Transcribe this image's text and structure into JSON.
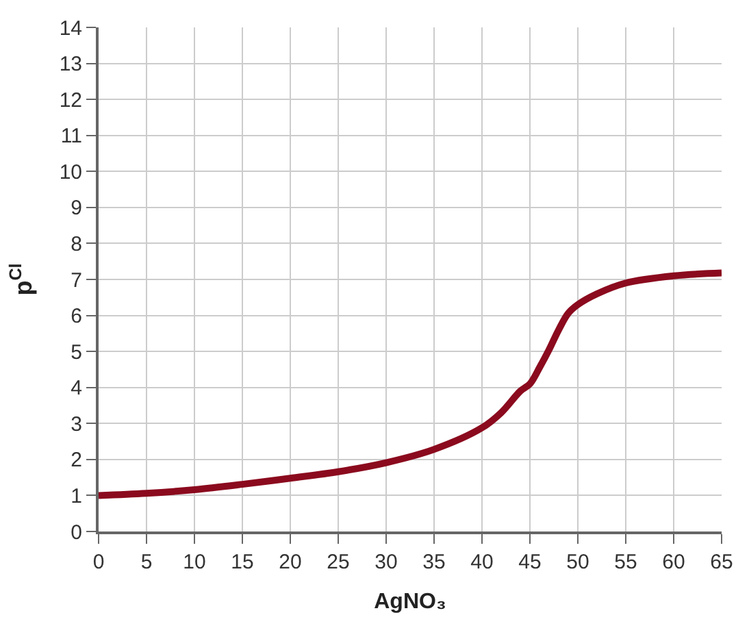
{
  "chart_data": {
    "type": "line",
    "xlabel": "AgNO₃",
    "ylabel": "p$^{Cl}$",
    "x": [
      0,
      5,
      10,
      15,
      20,
      25,
      30,
      35,
      40,
      42,
      44,
      45,
      46,
      47,
      48,
      49,
      50,
      52,
      55,
      60,
      65
    ],
    "series": [
      {
        "color": "#8b0a1e",
        "values": [
          1.0,
          1.06,
          1.16,
          1.31,
          1.48,
          1.66,
          1.91,
          2.28,
          2.88,
          3.3,
          3.9,
          4.1,
          4.55,
          5.05,
          5.6,
          6.06,
          6.3,
          6.6,
          6.9,
          7.1,
          7.18
        ]
      }
    ],
    "xlim": [
      0,
      65
    ],
    "xticks": [
      0,
      5,
      10,
      15,
      20,
      25,
      30,
      35,
      40,
      45,
      50,
      55,
      60,
      65
    ],
    "ylim": [
      0,
      14
    ],
    "yticks": [
      0,
      1,
      2,
      3,
      4,
      5,
      6,
      7,
      8,
      9,
      10,
      11,
      12,
      13,
      14
    ],
    "grid": true,
    "marker": "none",
    "line_style": "solid"
  }
}
